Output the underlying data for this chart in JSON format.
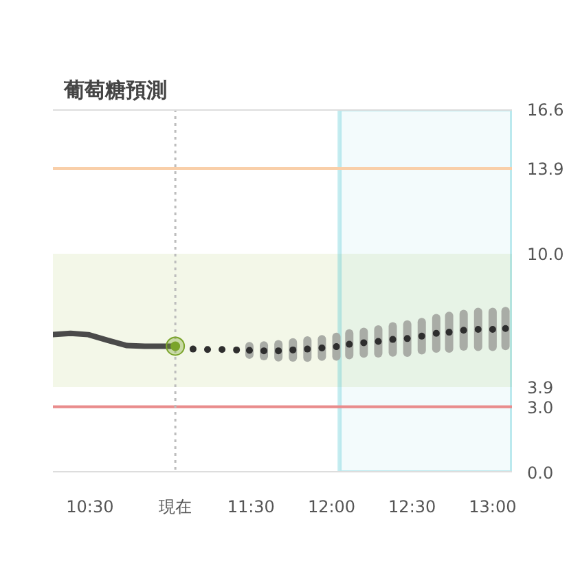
{
  "chart_data": {
    "type": "line",
    "title": "葡萄糖預測",
    "xlim": [
      10.27,
      13.12
    ],
    "xticks": [
      {
        "value": 10.5,
        "label": "10:30"
      },
      {
        "value": 11.03,
        "label": "現在"
      },
      {
        "value": 11.5,
        "label": "11:30"
      },
      {
        "value": 12.0,
        "label": "12:00"
      },
      {
        "value": 12.5,
        "label": "12:30"
      },
      {
        "value": 13.0,
        "label": "13:00"
      }
    ],
    "ylim": [
      0,
      16.6
    ],
    "yticks": [
      {
        "value": 0,
        "label": "0.0"
      },
      {
        "value": 3.0,
        "label": "3.0"
      },
      3.9,
      {
        "value": 10.0,
        "label": "10.0"
      },
      13.9,
      16.6
    ],
    "grid": false,
    "tick_labels": "xy",
    "series": [
      {
        "color": "#4a4a4a",
        "x": [
          10.27,
          10.38,
          10.49,
          10.61,
          10.73,
          10.84,
          11.03
        ],
        "values": [
          6.3,
          6.36,
          6.3,
          6.04,
          5.8,
          5.77,
          5.77
        ]
      },
      {
        "type": "scatter",
        "marker": "circle",
        "color": "#7aa42a",
        "x": [
          11.03
        ],
        "values": [
          5.77
        ]
      },
      {
        "type": "scatter",
        "marker": "circle",
        "color": "#2e2e2e",
        "x": [
          11.14,
          11.23,
          11.32,
          11.41,
          11.49,
          11.58,
          11.67,
          11.76,
          11.85,
          11.94,
          12.03,
          12.11,
          12.2,
          12.29,
          12.38,
          12.47,
          12.56,
          12.65,
          12.73,
          12.82,
          12.91,
          13.0,
          13.08
        ],
        "values": [
          5.64,
          5.62,
          5.62,
          5.6,
          5.58,
          5.56,
          5.56,
          5.6,
          5.64,
          5.69,
          5.75,
          5.86,
          5.93,
          5.99,
          6.08,
          6.12,
          6.23,
          6.36,
          6.41,
          6.5,
          6.54,
          6.54,
          6.58
        ],
        "errors": [
          null,
          null,
          null,
          null,
          0.2,
          0.25,
          0.3,
          0.35,
          0.4,
          0.4,
          0.45,
          0.5,
          0.5,
          0.55,
          0.6,
          0.65,
          0.65,
          0.7,
          0.75,
          0.75,
          0.8,
          0.8,
          0.8
        ]
      }
    ],
    "ref_lines": [
      {
        "axis": "y",
        "value": 13.9,
        "color": "#f9cfa9"
      },
      {
        "axis": "y",
        "value": 3.0,
        "color": "#e98c8c"
      },
      {
        "axis": "x",
        "value": 11.03,
        "color": "#bdbdbd",
        "line_style": "dotted"
      }
    ],
    "bands": [
      {
        "axis": "y",
        "from": 3.9,
        "to": 10.0,
        "color": "#f3f7e8"
      },
      {
        "axis": "x",
        "from": 12.05,
        "to": 13.12,
        "color": "#3bbfcc"
      }
    ]
  }
}
